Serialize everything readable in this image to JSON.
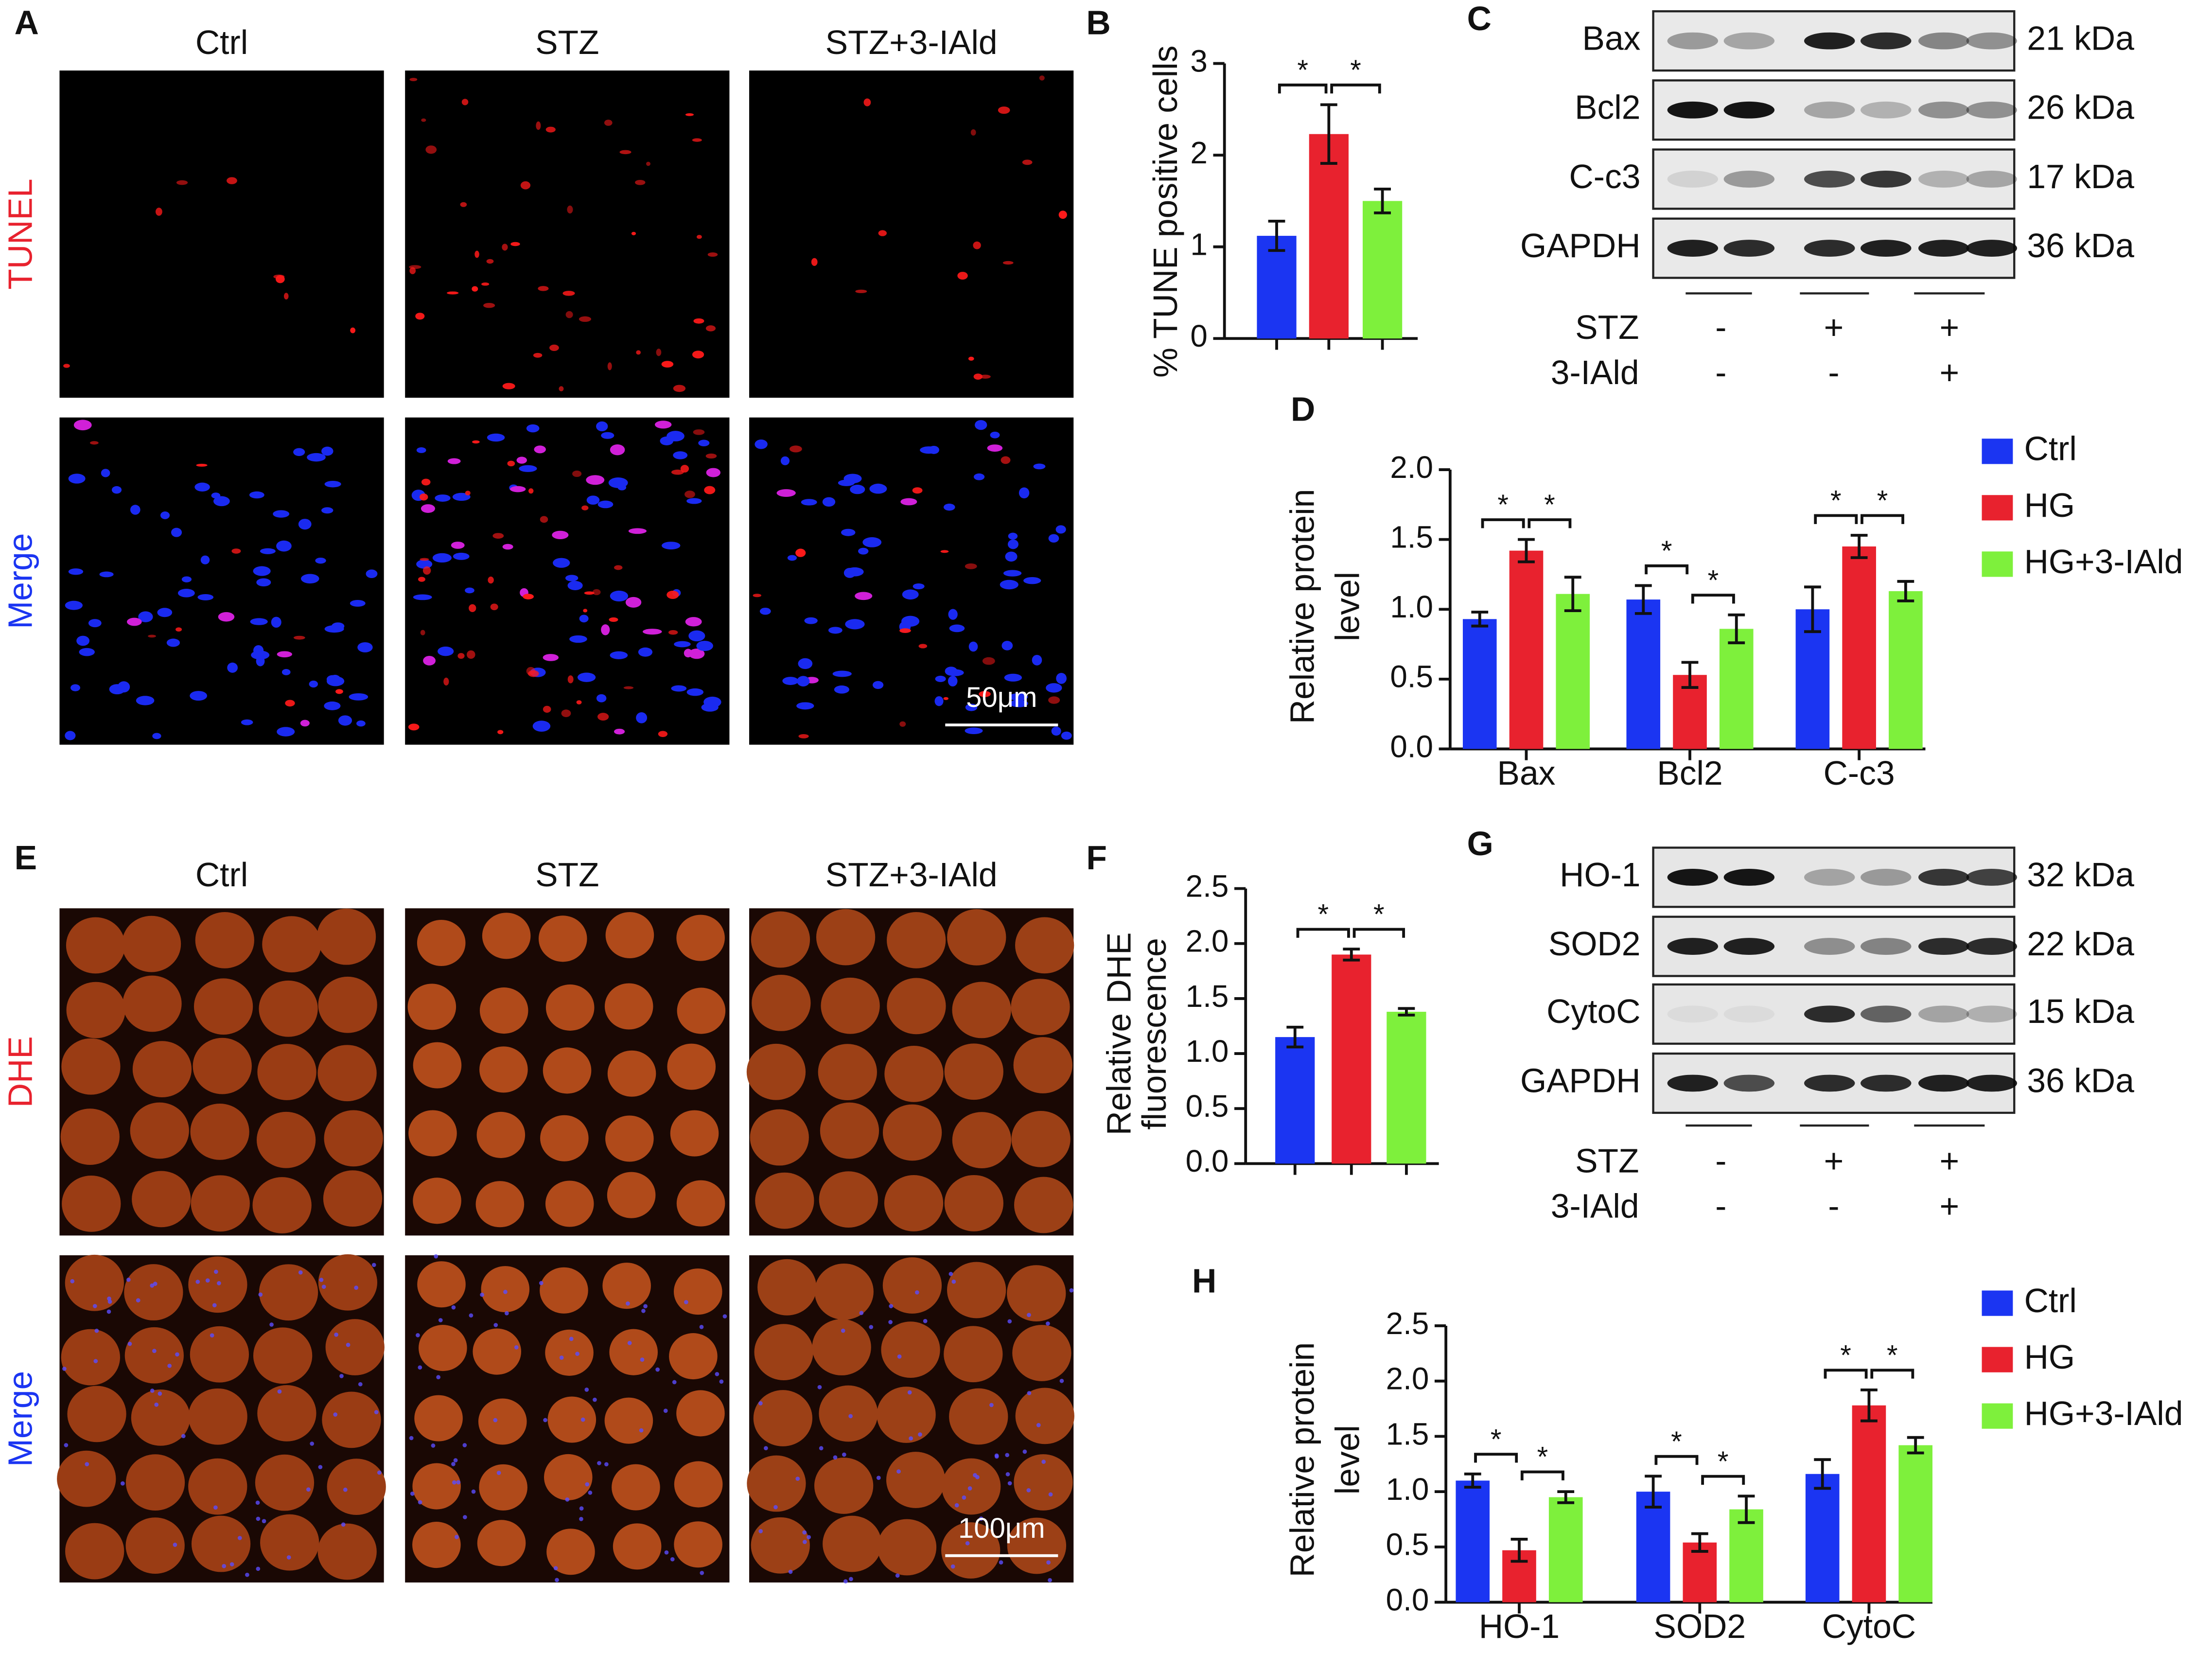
{
  "panel_labels": [
    "A",
    "B",
    "C",
    "D",
    "E",
    "F",
    "G",
    "H"
  ],
  "micrographs": [
    {
      "columns": [
        "Ctrl",
        "STZ",
        "STZ+3-IAld"
      ],
      "rows": [
        "TUNEL",
        "Merge"
      ],
      "scale_bar": "50μm"
    },
    {
      "columns": [
        "Ctrl",
        "STZ",
        "STZ+3-IAld"
      ],
      "rows": [
        "DHE",
        "Merge"
      ],
      "scale_bar": "100μm"
    }
  ],
  "blots": [
    {
      "bands": [
        {
          "name": "Bax",
          "size": "21 kDa"
        },
        {
          "name": "Bcl2",
          "size": "26 kDa"
        },
        {
          "name": "C-c3",
          "size": "17 kDa"
        },
        {
          "name": "GAPDH",
          "size": "36 kDa"
        }
      ],
      "treatments": [
        {
          "name": "STZ",
          "signs": [
            "-",
            "+",
            "+"
          ]
        },
        {
          "name": "3-IAld",
          "signs": [
            "-",
            "-",
            "+"
          ]
        }
      ]
    },
    {
      "bands": [
        {
          "name": "HO-1",
          "size": "32 kDa"
        },
        {
          "name": "SOD2",
          "size": "22 kDa"
        },
        {
          "name": "CytoC",
          "size": "15 kDa"
        },
        {
          "name": "GAPDH",
          "size": "36 kDa"
        }
      ],
      "treatments": [
        {
          "name": "STZ",
          "signs": [
            "-",
            "+",
            "+"
          ]
        },
        {
          "name": "3-IAld",
          "signs": [
            "-",
            "-",
            "+"
          ]
        }
      ]
    }
  ],
  "chart_data": [
    {
      "type": "bar",
      "ylabel": [
        "% TUNE positive cells"
      ],
      "categories": [
        null,
        null,
        null
      ],
      "values": [
        1.12,
        2.23,
        1.5
      ],
      "errors": [
        0.16,
        0.32,
        0.13
      ],
      "colors": [
        "#1b35f2",
        "#e8222e",
        "#7ef03c"
      ],
      "ylim": [
        0,
        3
      ],
      "yticks": [
        0,
        1,
        2,
        3
      ],
      "annotations": [
        "*",
        "*"
      ]
    },
    {
      "type": "bar",
      "ylabel": [
        "Relative protein",
        "level"
      ],
      "categories": [
        "Bax",
        "Bcl2",
        "C-c3"
      ],
      "series": [
        {
          "name": "Ctrl",
          "color": "#1b35f2",
          "values": [
            0.93,
            1.07,
            1.0
          ],
          "errors": [
            0.05,
            0.1,
            0.16
          ]
        },
        {
          "name": "HG",
          "color": "#e8222e",
          "values": [
            1.42,
            0.53,
            1.45
          ],
          "errors": [
            0.08,
            0.09,
            0.08
          ]
        },
        {
          "name": "HG+3-IAld",
          "color": "#7ef03c",
          "values": [
            1.11,
            0.86,
            1.13
          ],
          "errors": [
            0.12,
            0.1,
            0.07
          ]
        }
      ],
      "ylim": [
        0,
        2
      ],
      "yticks": [
        {
          "value": 0,
          "label": "0.0"
        },
        {
          "value": 0.5,
          "label": "0.5"
        },
        {
          "value": 1,
          "label": "1.0"
        },
        {
          "value": 1.5,
          "label": "1.5"
        },
        {
          "value": 2,
          "label": "2.0"
        }
      ],
      "annotations": [
        "*",
        "*",
        "*",
        "*",
        "*",
        "*"
      ]
    },
    {
      "type": "bar",
      "ylabel": [
        "Relative DHE",
        "fluorescence"
      ],
      "categories": [
        null,
        null,
        null
      ],
      "values": [
        1.15,
        1.9,
        1.38
      ],
      "errors": [
        0.09,
        0.05,
        0.03
      ],
      "colors": [
        "#1b35f2",
        "#e8222e",
        "#7ef03c"
      ],
      "ylim": [
        0,
        2.5
      ],
      "yticks": [
        {
          "value": 0,
          "label": "0.0"
        },
        {
          "value": 0.5,
          "label": "0.5"
        },
        {
          "value": 1,
          "label": "1.0"
        },
        {
          "value": 1.5,
          "label": "1.5"
        },
        {
          "value": 2,
          "label": "2.0"
        },
        {
          "value": 2.5,
          "label": "2.5"
        }
      ],
      "annotations": [
        "*",
        "*"
      ]
    },
    {
      "type": "bar",
      "ylabel": [
        "Relative protein",
        "level"
      ],
      "categories": [
        "HO-1",
        "SOD2",
        "CytoC"
      ],
      "series": [
        {
          "name": "Ctrl",
          "color": "#1b35f2",
          "values": [
            1.1,
            1.0,
            1.16
          ],
          "errors": [
            0.06,
            0.14,
            0.13
          ]
        },
        {
          "name": "HG",
          "color": "#e8222e",
          "values": [
            0.47,
            0.54,
            1.78
          ],
          "errors": [
            0.1,
            0.08,
            0.14
          ]
        },
        {
          "name": "HG+3-IAld",
          "color": "#7ef03c",
          "values": [
            0.95,
            0.84,
            1.42
          ],
          "errors": [
            0.05,
            0.12,
            0.07
          ]
        }
      ],
      "ylim": [
        0,
        2.5
      ],
      "yticks": [
        {
          "value": 0,
          "label": "0.0"
        },
        {
          "value": 0.5,
          "label": "0.5"
        },
        {
          "value": 1,
          "label": "1.0"
        },
        {
          "value": 1.5,
          "label": "1.5"
        },
        {
          "value": 2,
          "label": "2.0"
        },
        {
          "value": 2.5,
          "label": "2.5"
        }
      ],
      "annotations": [
        "*",
        "*",
        "*",
        "*",
        "*",
        "*"
      ]
    }
  ]
}
